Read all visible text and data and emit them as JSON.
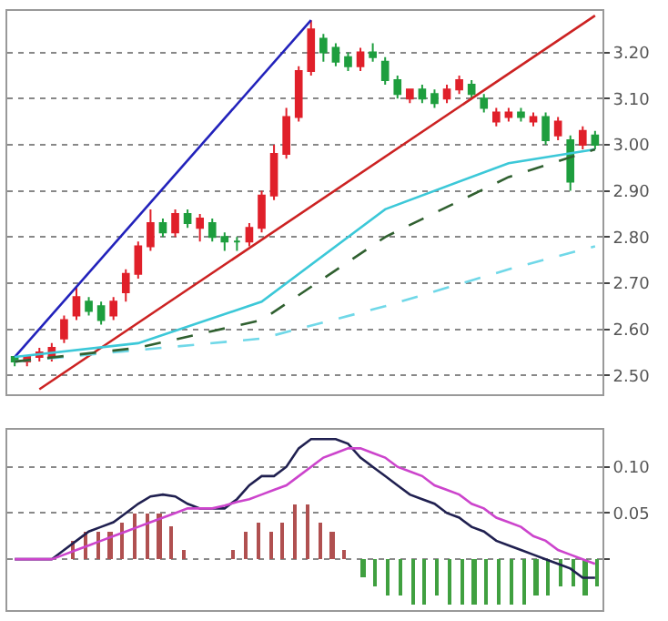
{
  "chart_data": [
    {
      "type": "candlestick",
      "categories": [
        null,
        null,
        null,
        null,
        null,
        null,
        null,
        null,
        null,
        null,
        null,
        null,
        null,
        null,
        null,
        null,
        null,
        null,
        null,
        null,
        null,
        null,
        null,
        null,
        null,
        null,
        null,
        null,
        null,
        null,
        null,
        null,
        null,
        null,
        null,
        null,
        null,
        null,
        null,
        null,
        null,
        null,
        null,
        null,
        null,
        null,
        null,
        null
      ],
      "ohlc": [
        [
          2.54,
          2.54,
          2.52,
          2.53
        ],
        [
          2.53,
          2.54,
          2.52,
          2.54
        ],
        [
          2.54,
          2.56,
          2.53,
          2.55
        ],
        [
          2.54,
          2.57,
          2.53,
          2.56
        ],
        [
          2.58,
          2.63,
          2.57,
          2.62
        ],
        [
          2.63,
          2.69,
          2.62,
          2.67
        ],
        [
          2.66,
          2.67,
          2.63,
          2.64
        ],
        [
          2.65,
          2.66,
          2.61,
          2.62
        ],
        [
          2.63,
          2.67,
          2.62,
          2.66
        ],
        [
          2.68,
          2.73,
          2.66,
          2.72
        ],
        [
          2.72,
          2.79,
          2.71,
          2.78
        ],
        [
          2.78,
          2.86,
          2.77,
          2.83
        ],
        [
          2.83,
          2.84,
          2.8,
          2.81
        ],
        [
          2.81,
          2.86,
          2.8,
          2.85
        ],
        [
          2.85,
          2.86,
          2.82,
          2.83
        ],
        [
          2.82,
          2.85,
          2.79,
          2.84
        ],
        [
          2.83,
          2.84,
          2.79,
          2.8
        ],
        [
          2.8,
          2.81,
          2.77,
          2.79
        ],
        [
          2.79,
          2.8,
          2.77,
          2.79
        ],
        [
          2.79,
          2.83,
          2.78,
          2.82
        ],
        [
          2.82,
          2.9,
          2.81,
          2.89
        ],
        [
          2.89,
          3.0,
          2.88,
          2.98
        ],
        [
          2.98,
          3.08,
          2.97,
          3.06
        ],
        [
          3.06,
          3.17,
          3.05,
          3.16
        ],
        [
          3.16,
          3.27,
          3.15,
          3.25
        ],
        [
          3.23,
          3.24,
          3.18,
          3.2
        ],
        [
          3.21,
          3.22,
          3.17,
          3.18
        ],
        [
          3.19,
          3.2,
          3.16,
          3.17
        ],
        [
          3.17,
          3.21,
          3.16,
          3.2
        ],
        [
          3.2,
          3.22,
          3.18,
          3.19
        ],
        [
          3.18,
          3.19,
          3.13,
          3.14
        ],
        [
          3.14,
          3.15,
          3.1,
          3.11
        ],
        [
          3.1,
          3.12,
          3.09,
          3.12
        ],
        [
          3.12,
          3.13,
          3.09,
          3.1
        ],
        [
          3.11,
          3.12,
          3.08,
          3.09
        ],
        [
          3.1,
          3.13,
          3.09,
          3.12
        ],
        [
          3.12,
          3.15,
          3.11,
          3.14
        ],
        [
          3.13,
          3.14,
          3.1,
          3.11
        ],
        [
          3.1,
          3.11,
          3.07,
          3.08
        ],
        [
          3.05,
          3.08,
          3.04,
          3.07
        ],
        [
          3.06,
          3.08,
          3.05,
          3.07
        ],
        [
          3.07,
          3.08,
          3.05,
          3.06
        ],
        [
          3.05,
          3.07,
          3.04,
          3.06
        ],
        [
          3.06,
          3.07,
          3.0,
          3.01
        ],
        [
          3.02,
          3.06,
          3.01,
          3.05
        ],
        [
          3.01,
          3.02,
          2.9,
          2.92
        ],
        [
          3.0,
          3.04,
          2.99,
          3.03
        ],
        [
          3.02,
          3.03,
          2.99,
          3.0
        ]
      ],
      "series": [
        {
          "type": "line",
          "color": "#2222bb",
          "values": [
            2.54,
            null,
            null,
            null,
            null,
            null,
            null,
            null,
            null,
            null,
            null,
            null,
            null,
            null,
            null,
            null,
            null,
            null,
            null,
            null,
            null,
            null,
            null,
            null,
            3.27,
            null,
            null,
            null,
            null,
            null,
            null,
            null,
            null,
            null,
            null,
            null,
            null,
            null,
            null,
            null,
            null,
            null,
            null,
            null,
            null,
            null,
            null,
            null
          ]
        },
        {
          "type": "line",
          "color": "#cc2222",
          "values": [
            null,
            null,
            2.47,
            null,
            null,
            null,
            null,
            null,
            null,
            null,
            null,
            null,
            null,
            null,
            null,
            null,
            null,
            null,
            null,
            null,
            null,
            null,
            null,
            null,
            null,
            null,
            null,
            null,
            null,
            null,
            null,
            null,
            null,
            null,
            null,
            null,
            null,
            null,
            null,
            null,
            null,
            null,
            null,
            null,
            null,
            null,
            null,
            3.28
          ]
        },
        {
          "type": "line",
          "color": "#3cc8d8",
          "values": [
            2.54,
            null,
            null,
            null,
            null,
            null,
            null,
            null,
            null,
            null,
            2.57,
            null,
            null,
            null,
            null,
            null,
            null,
            null,
            null,
            null,
            2.66,
            null,
            null,
            null,
            null,
            null,
            null,
            null,
            null,
            null,
            2.86,
            null,
            null,
            null,
            null,
            null,
            null,
            null,
            null,
            null,
            2.96,
            null,
            null,
            null,
            null,
            null,
            null,
            2.99
          ]
        },
        {
          "type": "line",
          "color": "#70d8e8",
          "line_style": "dashed",
          "values": [
            2.53,
            null,
            null,
            null,
            null,
            null,
            null,
            null,
            null,
            null,
            null,
            null,
            null,
            null,
            null,
            null,
            null,
            null,
            null,
            null,
            2.58,
            null,
            null,
            null,
            null,
            null,
            null,
            null,
            null,
            null,
            2.65,
            null,
            null,
            null,
            null,
            null,
            null,
            null,
            null,
            null,
            2.73,
            null,
            null,
            null,
            null,
            null,
            null,
            2.78
          ]
        },
        {
          "type": "line",
          "color": "#306030",
          "line_style": "dashed",
          "values": [
            2.53,
            null,
            null,
            null,
            null,
            null,
            null,
            null,
            null,
            null,
            2.56,
            null,
            null,
            null,
            null,
            null,
            null,
            null,
            null,
            null,
            2.62,
            null,
            null,
            null,
            null,
            null,
            null,
            null,
            null,
            null,
            2.8,
            null,
            null,
            null,
            null,
            null,
            null,
            null,
            null,
            null,
            2.93,
            null,
            null,
            null,
            null,
            null,
            null,
            2.99
          ]
        }
      ],
      "ylim": [
        2.46,
        3.29
      ],
      "yticks": [
        {
          "value": 3.2,
          "label": "3.20"
        },
        {
          "value": 3.1,
          "label": "3.10"
        },
        {
          "value": 3.0,
          "label": "3.00"
        },
        {
          "value": 2.9,
          "label": "2.90"
        },
        {
          "value": 2.8,
          "label": "2.80"
        },
        {
          "value": 2.7,
          "label": "2.70"
        },
        {
          "value": 2.6,
          "label": "2.60"
        },
        {
          "value": 2.5,
          "label": "2.50"
        }
      ],
      "grid": "y",
      "tick_labels": "y"
    },
    {
      "type": "line",
      "categories": [
        null,
        null,
        null,
        null,
        null,
        null,
        null,
        null,
        null,
        null,
        null,
        null,
        null,
        null,
        null,
        null,
        null,
        null,
        null,
        null,
        null,
        null,
        null,
        null,
        null,
        null,
        null,
        null,
        null,
        null,
        null,
        null,
        null,
        null,
        null,
        null,
        null,
        null,
        null,
        null,
        null,
        null,
        null,
        null,
        null,
        null,
        null,
        null
      ],
      "series": [
        {
          "type": "bar",
          "color": "#b05050",
          "values": [
            null,
            null,
            null,
            null,
            null,
            0.02,
            0.03,
            0.03,
            0.03,
            0.04,
            0.05,
            0.05,
            0.05,
            0.036,
            0.01,
            null,
            null,
            null,
            0.01,
            0.03,
            0.04,
            0.03,
            0.04,
            0.06,
            0.06,
            0.04,
            0.03,
            0.01,
            null,
            null,
            null,
            null,
            null,
            null,
            null,
            null,
            null,
            null,
            null,
            null,
            null,
            null,
            null,
            null,
            null,
            null,
            null,
            null
          ]
        },
        {
          "type": "bar",
          "color": "#40a040",
          "values": [
            null,
            null,
            null,
            null,
            null,
            null,
            null,
            null,
            null,
            null,
            null,
            null,
            null,
            null,
            null,
            null,
            null,
            null,
            null,
            null,
            null,
            null,
            null,
            null,
            null,
            null,
            null,
            null,
            -0.02,
            -0.03,
            -0.04,
            -0.04,
            -0.05,
            -0.05,
            -0.04,
            -0.05,
            -0.05,
            -0.05,
            -0.05,
            -0.05,
            -0.05,
            -0.05,
            -0.04,
            -0.04,
            -0.03,
            -0.03,
            -0.04,
            -0.03
          ]
        },
        {
          "type": "line",
          "color": "#202050",
          "values": [
            0,
            0,
            0,
            0,
            0.01,
            0.02,
            0.03,
            0.035,
            0.04,
            0.05,
            0.06,
            0.068,
            0.07,
            0.068,
            0.06,
            0.055,
            0.055,
            0.055,
            0.065,
            0.08,
            0.09,
            0.09,
            0.1,
            0.12,
            0.13,
            0.13,
            0.13,
            0.125,
            0.11,
            0.1,
            0.09,
            0.08,
            0.07,
            0.065,
            0.06,
            0.05,
            0.045,
            0.035,
            0.03,
            0.02,
            0.015,
            0.01,
            0.005,
            0,
            -0.005,
            -0.01,
            -0.02,
            -0.02
          ]
        },
        {
          "type": "line",
          "color": "#cc44cc",
          "values": [
            0,
            0,
            0,
            0,
            0.005,
            0.01,
            0.015,
            0.02,
            0.025,
            0.03,
            0.035,
            0.04,
            0.045,
            0.05,
            0.055,
            0.055,
            0.055,
            0.058,
            0.062,
            0.065,
            0.07,
            0.075,
            0.08,
            0.09,
            0.1,
            0.11,
            0.115,
            0.12,
            0.12,
            0.115,
            0.11,
            0.1,
            0.095,
            0.09,
            0.08,
            0.075,
            0.07,
            0.06,
            0.055,
            0.045,
            0.04,
            0.035,
            0.025,
            0.02,
            0.01,
            0.005,
            0,
            -0.005
          ]
        }
      ],
      "ylim": [
        -0.055,
        0.14
      ],
      "yticks": [
        {
          "value": 0.1,
          "label": "0.10"
        },
        {
          "value": 0.05,
          "label": "0.05"
        },
        {
          "value": 0,
          "label": null
        }
      ],
      "grid": "y",
      "tick_labels": "y"
    }
  ]
}
